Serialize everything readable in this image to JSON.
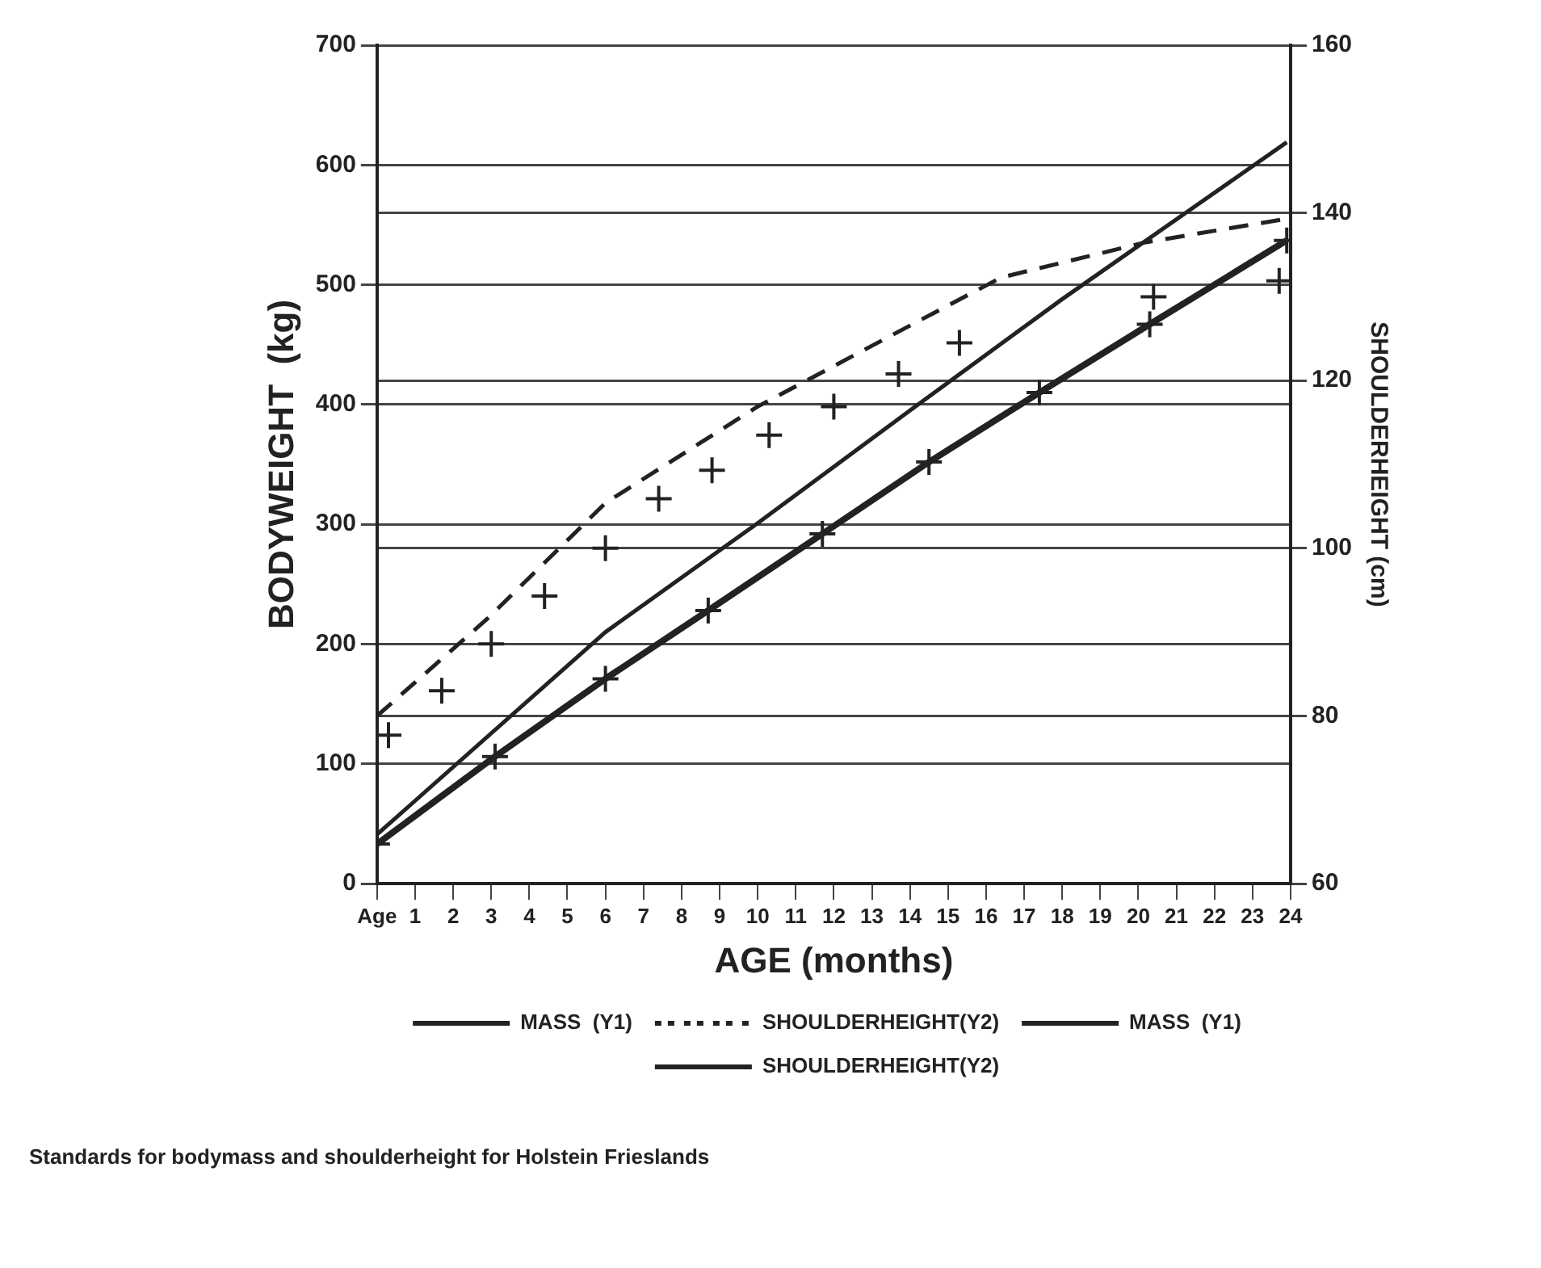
{
  "chart_data": {
    "type": "line",
    "xlabel": "AGE (months)",
    "ylabel": "BODYWEIGHT  (kg)",
    "y2label": "SHOULDERHEIGHT (cm)",
    "xlim": [
      0,
      24
    ],
    "xticks": [
      {
        "value": 0,
        "label": "Age"
      },
      1,
      2,
      3,
      4,
      5,
      6,
      7,
      8,
      9,
      10,
      11,
      12,
      13,
      14,
      15,
      16,
      17,
      18,
      19,
      20,
      21,
      22,
      23,
      24
    ],
    "ylim": [
      0,
      700
    ],
    "yticks": [
      0,
      100,
      200,
      300,
      400,
      500,
      600,
      700
    ],
    "y2lim": [
      60,
      160
    ],
    "y2ticks": [
      60,
      80,
      100,
      120,
      140,
      160
    ],
    "grid": "y",
    "legend": "bottom",
    "series": [
      {
        "name": "MASS  (Y1)",
        "type": "line",
        "color": "#222222",
        "marker": "cross",
        "line_style": "solid",
        "x": [
          0,
          3.1,
          6,
          8.7,
          11.7,
          14.5,
          17.4,
          20.3,
          23.9
        ],
        "values": [
          33,
          106,
          171,
          228,
          292,
          352,
          410,
          467,
          537
        ]
      },
      {
        "name": "SHOULDERHEIGHT(Y2)",
        "type": "scatter",
        "axis": "y2",
        "color": "#222222",
        "marker": "cross",
        "x": [
          0.3,
          1.7,
          3,
          4.4,
          6,
          7.4,
          8.8,
          10.3,
          12,
          13.7,
          15.3,
          20.4,
          23.7
        ],
        "values": [
          77.7,
          83,
          88.6,
          94.3,
          100,
          105.9,
          109.3,
          113.5,
          116.9,
          120.8,
          124.5,
          130,
          131.9
        ]
      },
      {
        "name": "MASS  (Y1)",
        "type": "line",
        "color": "#222222",
        "marker": "none",
        "line_style": "solid",
        "x": [
          0,
          6,
          10,
          14,
          18,
          23.9
        ],
        "values": [
          41,
          210,
          301,
          395,
          488,
          619
        ]
      },
      {
        "name": "SHOULDERHEIGHT(Y2)",
        "type": "line",
        "axis": "y2",
        "color": "#222222",
        "marker": "none",
        "line_style": "dashed",
        "x": [
          0,
          2.9,
          6,
          10,
          14.1,
          16.4,
          20.2,
          23.9
        ],
        "values": [
          80,
          91.6,
          105.4,
          116.9,
          126.8,
          132.3,
          136.5,
          139.3
        ]
      }
    ],
    "annotations": [
      "Standards for bodymass and shoulderheight for Holstein Frieslands"
    ]
  }
}
